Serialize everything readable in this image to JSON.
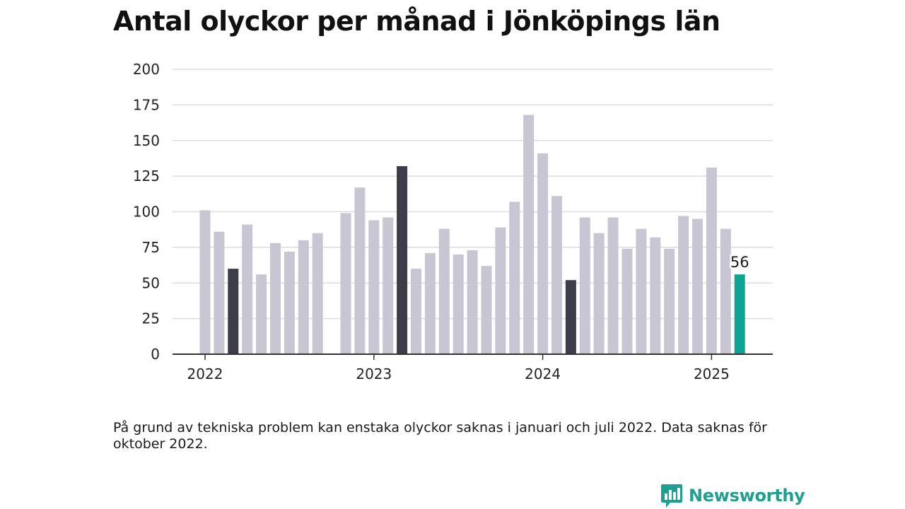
{
  "chart_data": {
    "type": "bar",
    "title": "Antal olyckor per månad i Jönköpings län",
    "xlabel": "",
    "ylabel": "",
    "ylim": [
      0,
      200
    ],
    "yticks": [
      0,
      25,
      50,
      75,
      100,
      125,
      150,
      175,
      200
    ],
    "xtick_labels": [
      "2022",
      "2023",
      "2024",
      "2025"
    ],
    "grid": true,
    "categories": [
      "2022-01",
      "2022-02",
      "2022-03",
      "2022-04",
      "2022-05",
      "2022-06",
      "2022-07",
      "2022-08",
      "2022-09",
      "2022-10",
      "2022-11",
      "2022-12",
      "2023-01",
      "2023-02",
      "2023-03",
      "2023-04",
      "2023-05",
      "2023-06",
      "2023-07",
      "2023-08",
      "2023-09",
      "2023-10",
      "2023-11",
      "2023-12",
      "2024-01",
      "2024-02",
      "2024-03",
      "2024-04",
      "2024-05",
      "2024-06",
      "2024-07",
      "2024-08",
      "2024-09",
      "2024-10",
      "2024-11",
      "2024-12",
      "2025-01",
      "2025-02",
      "2025-03"
    ],
    "values": [
      101,
      86,
      60,
      91,
      56,
      78,
      72,
      80,
      85,
      null,
      99,
      117,
      94,
      96,
      132,
      60,
      71,
      88,
      70,
      73,
      62,
      89,
      107,
      168,
      141,
      111,
      52,
      96,
      85,
      96,
      74,
      88,
      82,
      74,
      97,
      95,
      131,
      88,
      56
    ],
    "highlight_dark": [
      "2022-03",
      "2023-03",
      "2024-03"
    ],
    "highlight_current": "2025-03",
    "data_labels": [
      {
        "category": "2025-03",
        "text": "56"
      }
    ],
    "colors": {
      "default": "#c8c6d3",
      "dark": "#3d3c49",
      "current": "#0fa394",
      "grid": "#dcdcdc",
      "axis": "#333333"
    },
    "note": "På grund av tekniska problem kan enstaka olyckor saknas i januari och juli 2022. Data saknas för oktober 2022."
  },
  "brand": {
    "name": "Newsworthy",
    "icon": "newsworthy-logo-icon",
    "color": "#1f9e92"
  }
}
